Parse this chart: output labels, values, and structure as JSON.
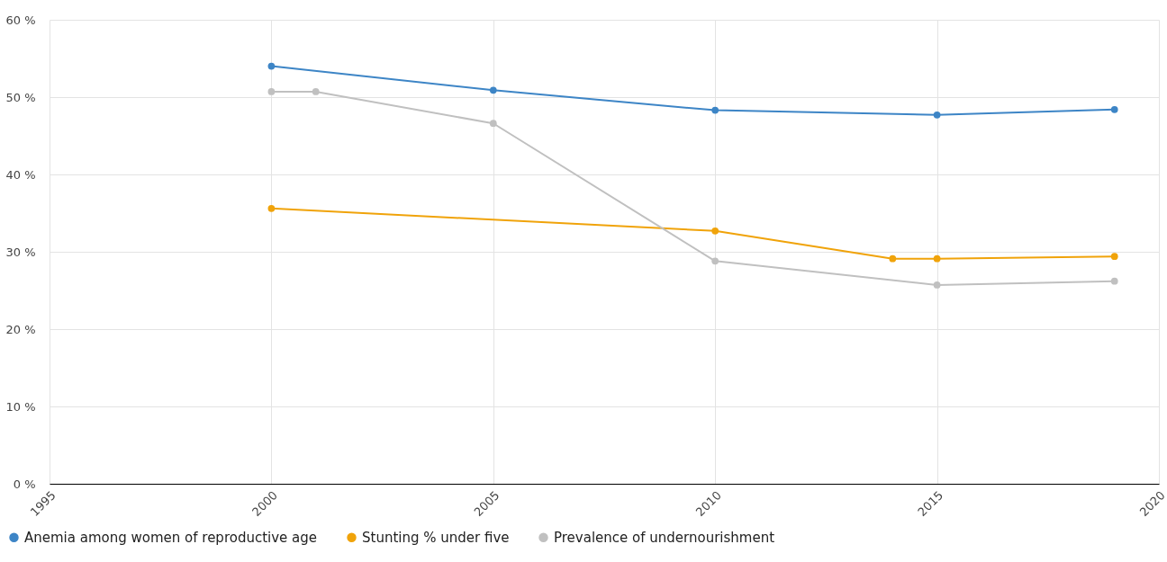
{
  "chart_data": {
    "type": "line",
    "xlim": [
      1995,
      2020
    ],
    "xticks": [
      1995,
      2000,
      2005,
      2010,
      2015,
      2020
    ],
    "ylim": [
      0,
      60
    ],
    "yticks": [
      {
        "value": 0,
        "label": "0 %"
      },
      {
        "value": 10,
        "label": "10 %"
      },
      {
        "value": 20,
        "label": "20 %"
      },
      {
        "value": 30,
        "label": "30 %"
      },
      {
        "value": 40,
        "label": "40 %"
      },
      {
        "value": 50,
        "label": "50 %"
      },
      {
        "value": 60,
        "label": "60 %"
      }
    ],
    "grid": true,
    "legend": "bottom left",
    "marker": "circle",
    "line_style": "solid",
    "series": [
      {
        "name": "Anemia among women of reproductive age",
        "color": "#3d85c6",
        "x": [
          2000,
          2005,
          2010,
          2015,
          2019
        ],
        "values": [
          54.0,
          50.9,
          48.3,
          47.7,
          48.4
        ]
      },
      {
        "name": "Stunting % under five",
        "color": "#f0a30a",
        "x": [
          2000,
          2010,
          2014,
          2015,
          2019
        ],
        "values": [
          35.6,
          32.7,
          29.1,
          29.1,
          29.4
        ]
      },
      {
        "name": "Prevalence of undernourishment",
        "color": "#c0c0c0",
        "x": [
          2000,
          2001,
          2005,
          2010,
          2015,
          2019
        ],
        "values": [
          50.7,
          50.7,
          46.6,
          28.8,
          25.7,
          26.2
        ]
      }
    ]
  }
}
